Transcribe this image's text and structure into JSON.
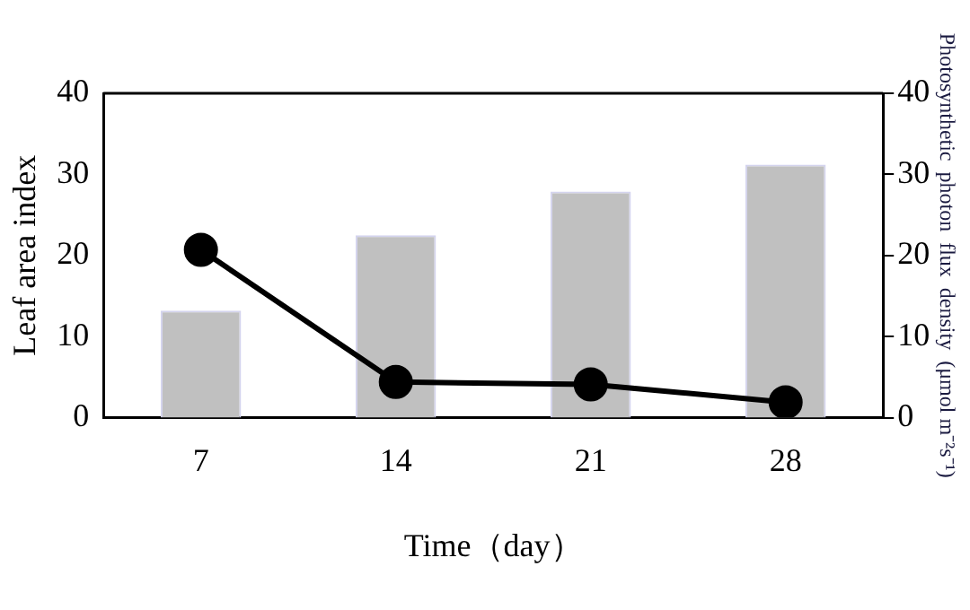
{
  "chart_data": {
    "type": "bar",
    "categories": [
      "7",
      "14",
      "21",
      "28"
    ],
    "xlabel": "Time（day）",
    "ylabel": "Leaf area index",
    "y2label": "Photosynthetic  photon  flux  density  (μmol m⁻²s⁻¹)",
    "series": [
      {
        "color": "#c0c0c0",
        "values": [
          13.2,
          22.5,
          27.9,
          31.2
        ]
      },
      {
        "type": "line",
        "axis": "y2",
        "color": "#000000",
        "values": [
          20.7,
          4.4,
          4.1,
          1.9
        ]
      }
    ],
    "ylim": [
      0,
      40
    ],
    "yticks": [
      0,
      10,
      20,
      30,
      40
    ],
    "y2lim": [
      0,
      40
    ],
    "y2ticks": [
      0,
      10,
      20,
      30,
      40
    ],
    "grid": false,
    "legend": false,
    "marker": "circle",
    "line_style": "solid"
  }
}
